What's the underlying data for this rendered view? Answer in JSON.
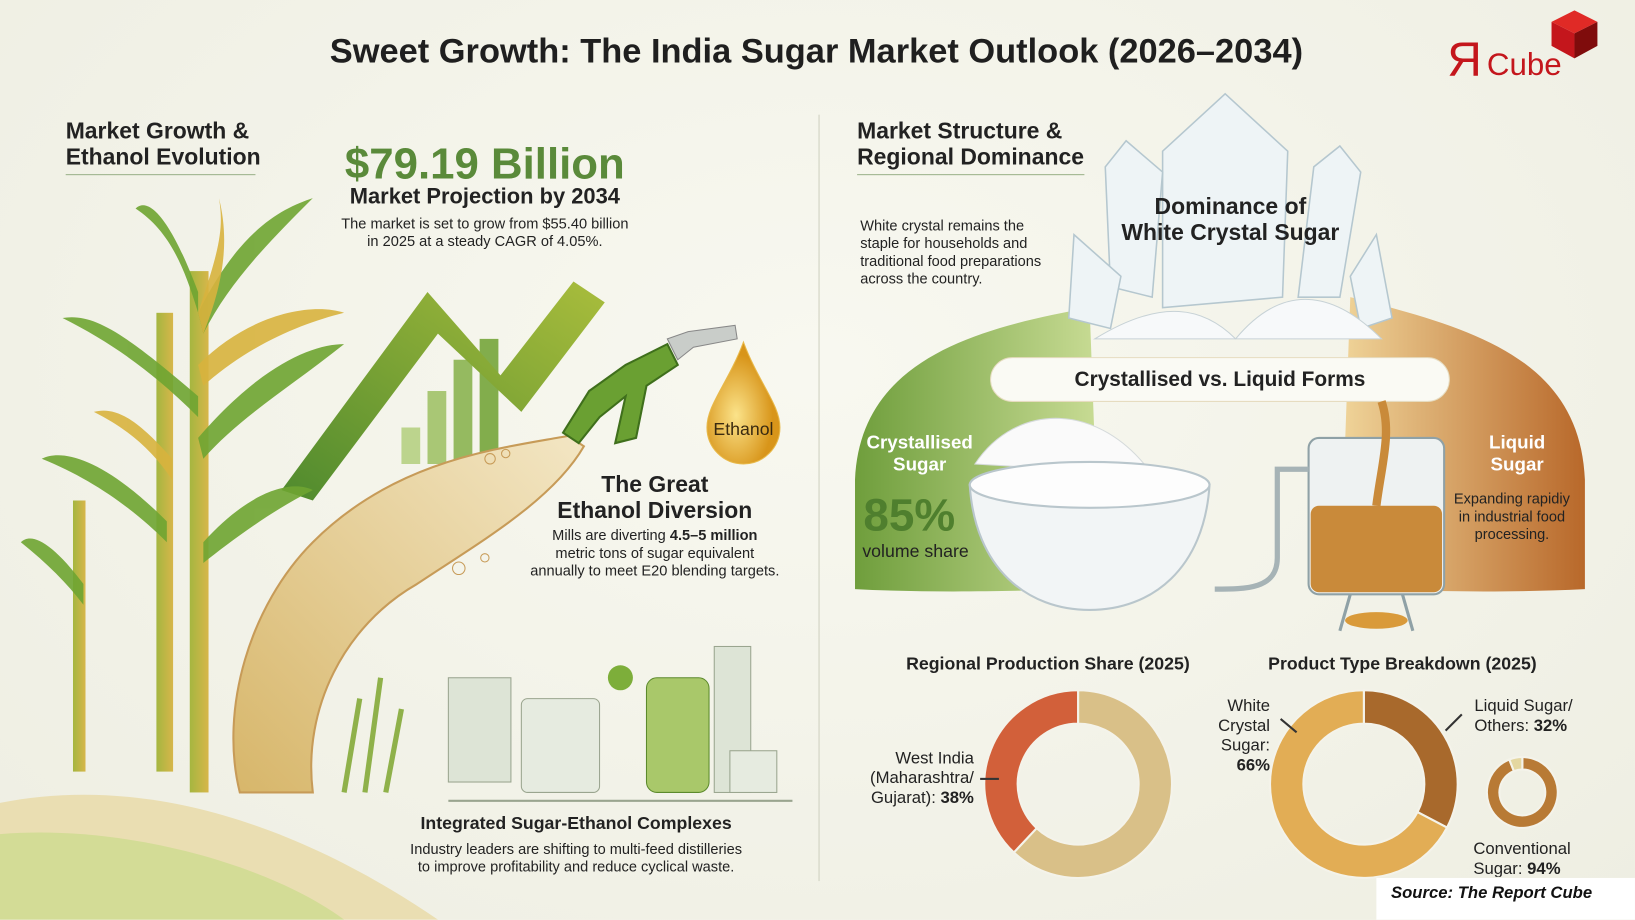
{
  "title": "Sweet Growth: The India Sugar Market Outlook (2026–2034)",
  "logo": {
    "text": "ЯCube",
    "color": "#c4161c"
  },
  "colors": {
    "green": "#5a8a3a",
    "orange": "#c9772e",
    "red": "#c4161c"
  },
  "left": {
    "heading": [
      "Market Growth &",
      "Ethanol Evolution"
    ],
    "projection_value": "$79.19 Billion",
    "projection_label": "Market Projection by 2034",
    "projection_desc": [
      "The market is set to grow from $55.40 billion",
      "in 2025 at a steady CAGR of 4.05%."
    ],
    "ethanol_drop": "Ethanol",
    "diversion_title": [
      "The Great",
      "Ethanol Diversion"
    ],
    "diversion_desc": {
      "pre": "Mills are diverting ",
      "bold": "4.5–5 million",
      "line2": "metric tons of sugar equivalent",
      "line3": "annually to meet E20 blending targets."
    },
    "complex_title": "Integrated Sugar-Ethanol Complexes",
    "complex_desc": [
      "Industry leaders are shifting to multi-feed distilleries",
      "to improve profitability and reduce cyclical waste."
    ]
  },
  "right": {
    "heading": [
      "Market Structure &",
      "Regional Dominance"
    ],
    "dominance_title": [
      "Dominance of",
      "White Crystal Sugar"
    ],
    "dominance_desc": [
      "White crystal remains the",
      "staple for households and",
      "traditional food preparations",
      "across the country."
    ],
    "forms_title": "Crystallised vs. Liquid Forms",
    "crystallised_label": [
      "Crystallised",
      "Sugar"
    ],
    "crystallised_share": "85%",
    "crystallised_share_label": "volume share",
    "liquid_label": [
      "Liquid",
      "Sugar"
    ],
    "liquid_desc": [
      "Expanding rapidiy",
      "in industrial food",
      "processing."
    ]
  },
  "chart_data": [
    {
      "type": "pie",
      "title": "Regional Production Share (2025)",
      "donut": true,
      "slices": [
        {
          "label": "West India (Maharashtra/ Gujarat)",
          "label_lines": [
            "West India",
            "(Maharashtra/",
            "Gujarat): "
          ],
          "value": 38,
          "value_text": "38%",
          "color": "#d2603a"
        },
        {
          "label": "",
          "value": 62,
          "color": "#d9c088"
        }
      ]
    },
    {
      "type": "pie",
      "title": "Product Type Breakdown (2025)",
      "donut": true,
      "slices": [
        {
          "label": "Liquid Sugar/ Others",
          "label_lines": [
            "Liquid Sugar/",
            "Others: "
          ],
          "value": 32,
          "value_text": "32%",
          "color": "#a8692c"
        },
        {
          "label": "White Crystal Sugar",
          "label_lines": [
            "White",
            "Crystal",
            "Sugar:"
          ],
          "value": 66,
          "value_text": "66%",
          "color": "#e2ad55"
        }
      ]
    },
    {
      "type": "pie",
      "donut": true,
      "slices": [
        {
          "label": "Conventional Sugar",
          "label_lines": [
            "Conventional",
            "Sugar: "
          ],
          "value": 94,
          "value_text": "94%",
          "color": "#b87a35"
        },
        {
          "label": "",
          "value": 6,
          "color": "#e4d7a0"
        }
      ]
    }
  ],
  "source": "Source: The Report Cube"
}
